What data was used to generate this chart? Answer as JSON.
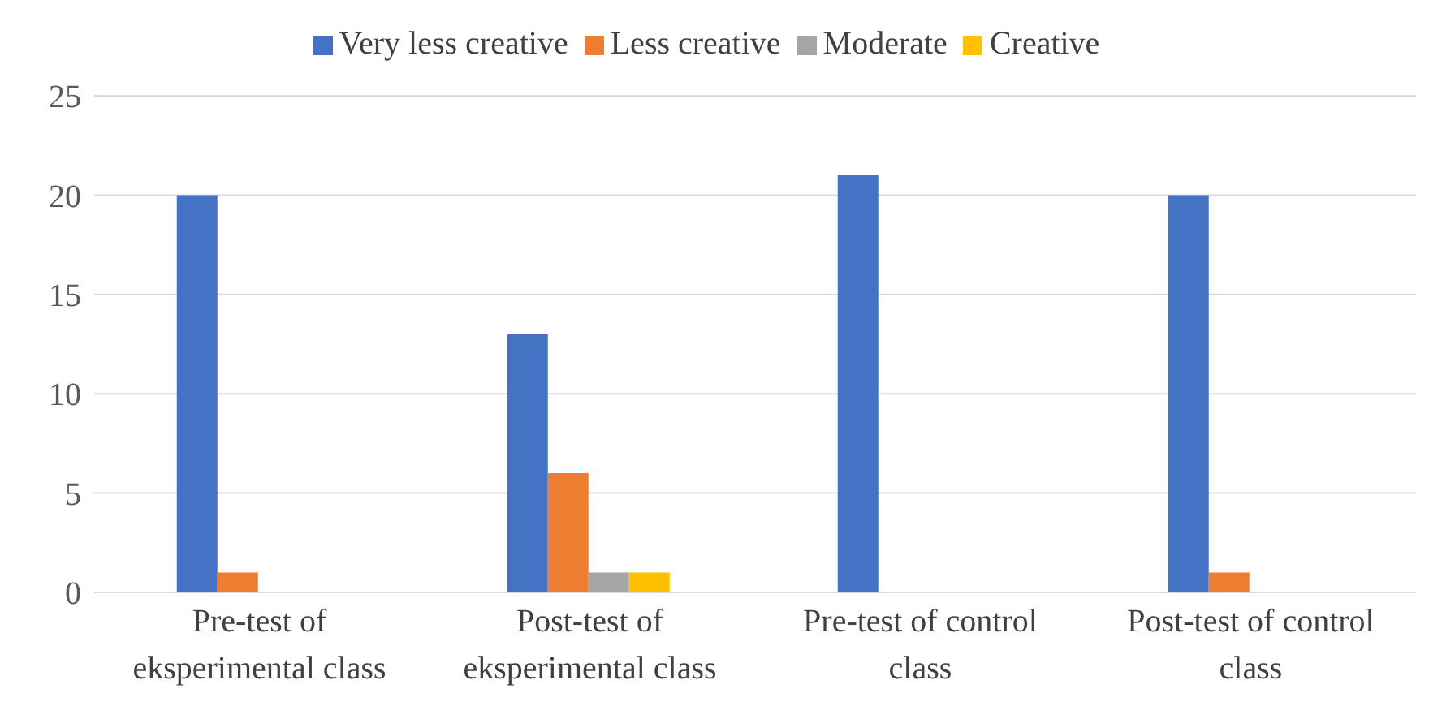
{
  "chart_data": {
    "type": "bar",
    "categories": [
      "Pre-test of eksperimental class",
      "Post-test of eksperimental class",
      "Pre-test of control class",
      "Post-test of control class"
    ],
    "series": [
      {
        "name": "Very less creative",
        "color": "#4472c4",
        "values": [
          20,
          13,
          21,
          20
        ]
      },
      {
        "name": "Less creative",
        "color": "#ed7d31",
        "values": [
          1,
          6,
          0,
          1
        ]
      },
      {
        "name": "Moderate",
        "color": "#a5a5a5",
        "values": [
          0,
          1,
          0,
          0
        ]
      },
      {
        "name": "Creative",
        "color": "#ffc000",
        "values": [
          0,
          1,
          0,
          0
        ]
      }
    ],
    "ylim": [
      0,
      25
    ],
    "yticks": [
      0,
      5,
      10,
      15,
      20,
      25
    ],
    "grid": "y",
    "legend": "top"
  }
}
